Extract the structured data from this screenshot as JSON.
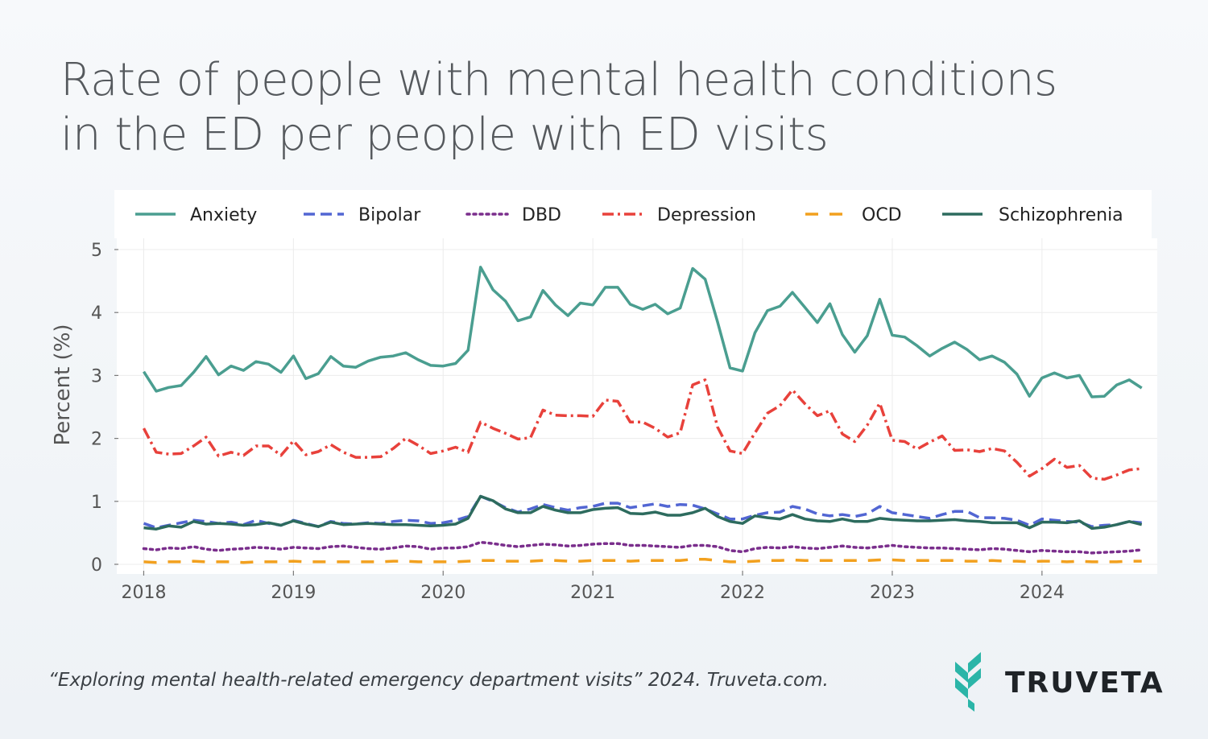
{
  "title_line1": "Rate of people with mental health conditions",
  "title_line2": "in the ED per people with ED visits",
  "citation": "“Exploring mental health-related emergency department visits” 2024. Truveta.com.",
  "brand": {
    "name": "TRUVETA",
    "logo_icon": "truveta-logo-icon",
    "color": "#2bb5a8"
  },
  "chart_data": {
    "type": "line",
    "title": "Rate of people with mental health conditions in the ED per people with ED visits",
    "xlabel": "",
    "ylabel": "Percent (%)",
    "ylim": [
      0,
      5
    ],
    "yticks": [
      0,
      1,
      2,
      3,
      4,
      5
    ],
    "x_start": 2018.0,
    "x_step": 0.08333,
    "xticks": [
      "2018",
      "2019",
      "2020",
      "2021",
      "2022",
      "2023",
      "2024"
    ],
    "xtick_values": [
      2018,
      2019,
      2020,
      2021,
      2022,
      2023,
      2024
    ],
    "xlim": [
      2017.82,
      2024.77
    ],
    "legend_position": "top",
    "grid": true,
    "series": [
      {
        "name": "Anxiety",
        "color": "#4a9e90",
        "dash": "solid",
        "values": [
          3.06,
          2.75,
          2.81,
          2.84,
          3.05,
          3.3,
          3.01,
          3.15,
          3.08,
          3.22,
          3.18,
          3.05,
          3.31,
          2.95,
          3.03,
          3.3,
          3.15,
          3.13,
          3.23,
          3.29,
          3.31,
          3.36,
          3.25,
          3.16,
          3.15,
          3.19,
          3.4,
          4.72,
          4.36,
          4.18,
          3.87,
          3.93,
          4.35,
          4.12,
          3.95,
          4.15,
          4.12,
          4.4,
          4.4,
          4.13,
          4.05,
          4.13,
          3.98,
          4.07,
          4.7,
          4.53,
          3.85,
          3.12,
          3.07,
          3.68,
          4.03,
          4.1,
          4.32,
          4.08,
          3.84,
          4.14,
          3.65,
          3.37,
          3.63,
          4.21,
          3.64,
          3.61,
          3.47,
          3.31,
          3.43,
          3.53,
          3.41,
          3.25,
          3.31,
          3.21,
          3.02,
          2.67,
          2.96,
          3.04,
          2.96,
          3.0,
          2.66,
          2.67,
          2.85,
          2.93,
          2.8
        ]
      },
      {
        "name": "Bipolar",
        "color": "#5266d3",
        "dash": "dashed",
        "values": [
          0.65,
          0.58,
          0.62,
          0.66,
          0.7,
          0.68,
          0.65,
          0.67,
          0.63,
          0.7,
          0.65,
          0.62,
          0.7,
          0.65,
          0.6,
          0.68,
          0.65,
          0.64,
          0.66,
          0.65,
          0.68,
          0.7,
          0.69,
          0.65,
          0.66,
          0.7,
          0.76,
          1.08,
          1.0,
          0.9,
          0.83,
          0.88,
          0.95,
          0.9,
          0.86,
          0.9,
          0.92,
          0.97,
          0.97,
          0.9,
          0.93,
          0.96,
          0.92,
          0.95,
          0.94,
          0.88,
          0.8,
          0.72,
          0.72,
          0.78,
          0.82,
          0.83,
          0.92,
          0.88,
          0.8,
          0.77,
          0.79,
          0.76,
          0.8,
          0.92,
          0.82,
          0.79,
          0.76,
          0.73,
          0.79,
          0.84,
          0.84,
          0.74,
          0.74,
          0.73,
          0.7,
          0.62,
          0.72,
          0.7,
          0.68,
          0.67,
          0.6,
          0.62,
          0.63,
          0.68,
          0.66
        ]
      },
      {
        "name": "DBD",
        "color": "#7a2e8c",
        "dash": "dotted",
        "values": [
          0.25,
          0.23,
          0.26,
          0.25,
          0.28,
          0.24,
          0.22,
          0.24,
          0.25,
          0.27,
          0.26,
          0.24,
          0.27,
          0.26,
          0.25,
          0.28,
          0.29,
          0.27,
          0.25,
          0.24,
          0.26,
          0.29,
          0.28,
          0.24,
          0.26,
          0.26,
          0.28,
          0.35,
          0.33,
          0.3,
          0.28,
          0.3,
          0.32,
          0.31,
          0.29,
          0.3,
          0.32,
          0.33,
          0.33,
          0.3,
          0.3,
          0.29,
          0.28,
          0.27,
          0.3,
          0.3,
          0.28,
          0.22,
          0.2,
          0.25,
          0.27,
          0.26,
          0.28,
          0.26,
          0.25,
          0.27,
          0.29,
          0.27,
          0.26,
          0.28,
          0.3,
          0.28,
          0.27,
          0.26,
          0.26,
          0.25,
          0.24,
          0.23,
          0.25,
          0.24,
          0.22,
          0.2,
          0.22,
          0.21,
          0.2,
          0.2,
          0.18,
          0.19,
          0.2,
          0.21,
          0.23
        ]
      },
      {
        "name": "Depression",
        "color": "#e8413b",
        "dash": "dashdot",
        "values": [
          2.16,
          1.78,
          1.75,
          1.76,
          1.88,
          2.02,
          1.72,
          1.78,
          1.73,
          1.88,
          1.88,
          1.73,
          1.96,
          1.74,
          1.79,
          1.9,
          1.78,
          1.7,
          1.7,
          1.71,
          1.84,
          2.0,
          1.89,
          1.76,
          1.8,
          1.86,
          1.78,
          2.26,
          2.16,
          2.08,
          1.99,
          2.01,
          2.45,
          2.37,
          2.36,
          2.36,
          2.35,
          2.61,
          2.59,
          2.26,
          2.26,
          2.16,
          2.02,
          2.09,
          2.85,
          2.93,
          2.18,
          1.8,
          1.76,
          2.09,
          2.4,
          2.52,
          2.77,
          2.55,
          2.36,
          2.44,
          2.07,
          1.95,
          2.21,
          2.56,
          1.97,
          1.95,
          1.83,
          1.94,
          2.04,
          1.81,
          1.82,
          1.79,
          1.84,
          1.8,
          1.62,
          1.4,
          1.52,
          1.67,
          1.54,
          1.57,
          1.37,
          1.35,
          1.42,
          1.5,
          1.52
        ]
      },
      {
        "name": "OCD",
        "color": "#f2a01e",
        "dash": "longdash",
        "values": [
          0.04,
          0.03,
          0.04,
          0.04,
          0.05,
          0.04,
          0.04,
          0.04,
          0.03,
          0.04,
          0.04,
          0.04,
          0.05,
          0.04,
          0.04,
          0.04,
          0.04,
          0.04,
          0.04,
          0.04,
          0.05,
          0.05,
          0.04,
          0.04,
          0.04,
          0.04,
          0.05,
          0.06,
          0.06,
          0.05,
          0.05,
          0.05,
          0.06,
          0.06,
          0.05,
          0.05,
          0.06,
          0.06,
          0.06,
          0.05,
          0.06,
          0.06,
          0.06,
          0.06,
          0.08,
          0.08,
          0.06,
          0.04,
          0.04,
          0.05,
          0.06,
          0.06,
          0.07,
          0.06,
          0.06,
          0.06,
          0.06,
          0.06,
          0.06,
          0.07,
          0.07,
          0.06,
          0.06,
          0.06,
          0.06,
          0.06,
          0.05,
          0.05,
          0.06,
          0.05,
          0.05,
          0.04,
          0.05,
          0.05,
          0.04,
          0.05,
          0.04,
          0.04,
          0.04,
          0.05,
          0.05
        ]
      },
      {
        "name": "Schizophrenia",
        "color": "#2d6b5e",
        "dash": "solid",
        "values": [
          0.58,
          0.56,
          0.61,
          0.59,
          0.68,
          0.64,
          0.65,
          0.64,
          0.62,
          0.63,
          0.66,
          0.62,
          0.69,
          0.64,
          0.6,
          0.67,
          0.63,
          0.64,
          0.65,
          0.64,
          0.63,
          0.63,
          0.62,
          0.61,
          0.62,
          0.64,
          0.73,
          1.08,
          1.01,
          0.88,
          0.82,
          0.82,
          0.92,
          0.86,
          0.82,
          0.82,
          0.87,
          0.89,
          0.9,
          0.81,
          0.8,
          0.83,
          0.78,
          0.78,
          0.82,
          0.89,
          0.76,
          0.68,
          0.65,
          0.77,
          0.74,
          0.72,
          0.79,
          0.72,
          0.69,
          0.68,
          0.72,
          0.68,
          0.68,
          0.73,
          0.71,
          0.7,
          0.69,
          0.69,
          0.7,
          0.71,
          0.69,
          0.68,
          0.66,
          0.66,
          0.66,
          0.58,
          0.67,
          0.67,
          0.66,
          0.69,
          0.57,
          0.59,
          0.63,
          0.68,
          0.63
        ]
      }
    ]
  }
}
